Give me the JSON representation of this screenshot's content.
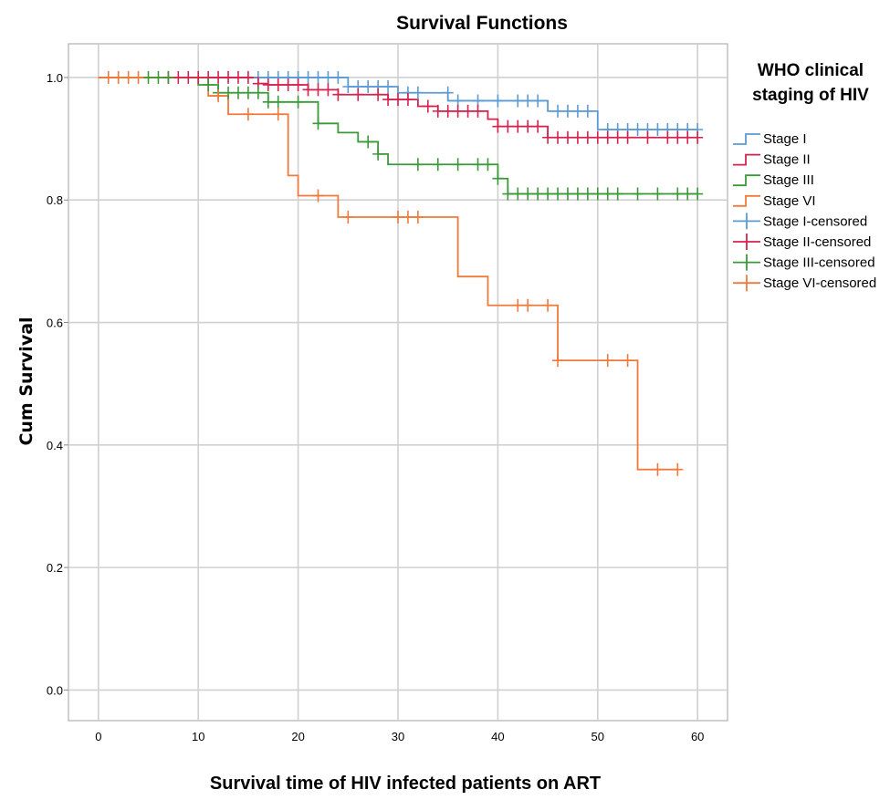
{
  "chart_data": {
    "type": "line",
    "title": "Survival Functions",
    "xlabel": "Survival time of HIV infected patients on ART",
    "ylabel": "Cum Survival",
    "xlim": [
      -3,
      63
    ],
    "ylim": [
      -0.05,
      1.055
    ],
    "x_ticks": [
      "0",
      "10",
      "20",
      "30",
      "40",
      "50",
      "60"
    ],
    "y_ticks": [
      "0.0",
      "0.2",
      "0.4",
      "0.6",
      "0.8",
      "1.0"
    ],
    "grid": true,
    "legend_title": [
      "WHO clinical",
      "staging of HIV"
    ],
    "legend_position": "right",
    "legend": [
      {
        "label": "Stage I",
        "kind": "step",
        "color": "#5b9bd5"
      },
      {
        "label": "Stage II",
        "kind": "step",
        "color": "#d6224e"
      },
      {
        "label": "Stage III",
        "kind": "step",
        "color": "#3a9a3a"
      },
      {
        "label": "Stage VI",
        "kind": "step",
        "color": "#f07a3c"
      },
      {
        "label": "Stage I-censored",
        "kind": "censor",
        "color": "#5b9bd5"
      },
      {
        "label": "Stage II-censored",
        "kind": "censor",
        "color": "#d6224e"
      },
      {
        "label": "Stage III-censored",
        "kind": "censor",
        "color": "#3a9a3a"
      },
      {
        "label": "Stage VI-censored",
        "kind": "censor",
        "color": "#f07a3c"
      }
    ],
    "series": [
      {
        "name": "Stage I",
        "color": "#5b9bd5",
        "steps": [
          [
            0,
            1.0
          ],
          [
            25,
            0.985
          ],
          [
            30,
            0.975
          ],
          [
            35,
            0.962
          ],
          [
            45,
            0.945
          ],
          [
            50,
            0.915
          ],
          [
            60,
            0.915
          ]
        ],
        "censored": [
          [
            16,
            1.0
          ],
          [
            17,
            1.0
          ],
          [
            18,
            1.0
          ],
          [
            19,
            1.0
          ],
          [
            20,
            1.0
          ],
          [
            21,
            1.0
          ],
          [
            22,
            1.0
          ],
          [
            23,
            1.0
          ],
          [
            24,
            1.0
          ],
          [
            25,
            0.985
          ],
          [
            26,
            0.985
          ],
          [
            27,
            0.985
          ],
          [
            28,
            0.985
          ],
          [
            29,
            0.985
          ],
          [
            31,
            0.975
          ],
          [
            32,
            0.975
          ],
          [
            35,
            0.975
          ],
          [
            36,
            0.962
          ],
          [
            38,
            0.962
          ],
          [
            40,
            0.962
          ],
          [
            42,
            0.962
          ],
          [
            43,
            0.962
          ],
          [
            44,
            0.962
          ],
          [
            46,
            0.945
          ],
          [
            47,
            0.945
          ],
          [
            48,
            0.945
          ],
          [
            49,
            0.945
          ],
          [
            51,
            0.915
          ],
          [
            52,
            0.915
          ],
          [
            53,
            0.915
          ],
          [
            54,
            0.915
          ],
          [
            55,
            0.915
          ],
          [
            56,
            0.915
          ],
          [
            57,
            0.915
          ],
          [
            58,
            0.915
          ],
          [
            59,
            0.915
          ],
          [
            60,
            0.915
          ]
        ]
      },
      {
        "name": "Stage II",
        "color": "#d6224e",
        "steps": [
          [
            0,
            1.0
          ],
          [
            16,
            0.99
          ],
          [
            17,
            0.988
          ],
          [
            21,
            0.98
          ],
          [
            24,
            0.972
          ],
          [
            29,
            0.964
          ],
          [
            32,
            0.953
          ],
          [
            34,
            0.945
          ],
          [
            39,
            0.932
          ],
          [
            40,
            0.92
          ],
          [
            45,
            0.902
          ],
          [
            60,
            0.902
          ]
        ],
        "censored": [
          [
            7,
            1.0
          ],
          [
            8,
            1.0
          ],
          [
            9,
            1.0
          ],
          [
            10,
            1.0
          ],
          [
            11,
            1.0
          ],
          [
            12,
            1.0
          ],
          [
            13,
            1.0
          ],
          [
            14,
            1.0
          ],
          [
            15,
            1.0
          ],
          [
            16,
            0.99
          ],
          [
            17,
            0.988
          ],
          [
            18,
            0.988
          ],
          [
            19,
            0.988
          ],
          [
            20,
            0.988
          ],
          [
            21,
            0.98
          ],
          [
            22,
            0.98
          ],
          [
            23,
            0.98
          ],
          [
            24,
            0.972
          ],
          [
            26,
            0.972
          ],
          [
            28,
            0.972
          ],
          [
            29,
            0.964
          ],
          [
            30,
            0.964
          ],
          [
            31,
            0.964
          ],
          [
            33,
            0.953
          ],
          [
            34,
            0.945
          ],
          [
            35,
            0.945
          ],
          [
            36,
            0.945
          ],
          [
            37,
            0.945
          ],
          [
            38,
            0.945
          ],
          [
            40,
            0.92
          ],
          [
            41,
            0.92
          ],
          [
            42,
            0.92
          ],
          [
            43,
            0.92
          ],
          [
            44,
            0.92
          ],
          [
            45,
            0.902
          ],
          [
            46,
            0.902
          ],
          [
            47,
            0.902
          ],
          [
            48,
            0.902
          ],
          [
            49,
            0.902
          ],
          [
            50,
            0.902
          ],
          [
            51,
            0.902
          ],
          [
            52,
            0.902
          ],
          [
            53,
            0.902
          ],
          [
            55,
            0.902
          ],
          [
            57,
            0.902
          ],
          [
            58,
            0.902
          ],
          [
            59,
            0.902
          ],
          [
            60,
            0.902
          ]
        ]
      },
      {
        "name": "Stage III",
        "color": "#3a9a3a",
        "steps": [
          [
            0,
            1.0
          ],
          [
            10,
            0.988
          ],
          [
            12,
            0.975
          ],
          [
            17,
            0.96
          ],
          [
            22,
            0.925
          ],
          [
            24,
            0.91
          ],
          [
            26,
            0.895
          ],
          [
            28,
            0.875
          ],
          [
            29,
            0.858
          ],
          [
            40,
            0.835
          ],
          [
            41,
            0.81
          ],
          [
            60,
            0.81
          ]
        ],
        "censored": [
          [
            5,
            1.0
          ],
          [
            6,
            1.0
          ],
          [
            7,
            1.0
          ],
          [
            11,
            0.988
          ],
          [
            12,
            0.975
          ],
          [
            13,
            0.975
          ],
          [
            14,
            0.975
          ],
          [
            15,
            0.975
          ],
          [
            16,
            0.975
          ],
          [
            17,
            0.96
          ],
          [
            18,
            0.96
          ],
          [
            20,
            0.96
          ],
          [
            22,
            0.925
          ],
          [
            27,
            0.895
          ],
          [
            28,
            0.875
          ],
          [
            32,
            0.858
          ],
          [
            34,
            0.858
          ],
          [
            36,
            0.858
          ],
          [
            38,
            0.858
          ],
          [
            39,
            0.858
          ],
          [
            40,
            0.835
          ],
          [
            41,
            0.81
          ],
          [
            42,
            0.81
          ],
          [
            43,
            0.81
          ],
          [
            44,
            0.81
          ],
          [
            45,
            0.81
          ],
          [
            46,
            0.81
          ],
          [
            47,
            0.81
          ],
          [
            48,
            0.81
          ],
          [
            49,
            0.81
          ],
          [
            50,
            0.81
          ],
          [
            51,
            0.81
          ],
          [
            52,
            0.81
          ],
          [
            54,
            0.81
          ],
          [
            56,
            0.81
          ],
          [
            58,
            0.81
          ],
          [
            59,
            0.81
          ],
          [
            60,
            0.81
          ]
        ]
      },
      {
        "name": "Stage VI",
        "color": "#f07a3c",
        "steps": [
          [
            0,
            1.0
          ],
          [
            11,
            0.97
          ],
          [
            13,
            0.94
          ],
          [
            19,
            0.84
          ],
          [
            20,
            0.807
          ],
          [
            24,
            0.772
          ],
          [
            36,
            0.675
          ],
          [
            39,
            0.628
          ],
          [
            46,
            0.538
          ],
          [
            54,
            0.36
          ],
          [
            58,
            0.36
          ]
        ],
        "censored": [
          [
            1,
            1.0
          ],
          [
            2,
            1.0
          ],
          [
            3,
            1.0
          ],
          [
            4,
            1.0
          ],
          [
            12,
            0.97
          ],
          [
            15,
            0.94
          ],
          [
            18,
            0.94
          ],
          [
            22,
            0.807
          ],
          [
            25,
            0.772
          ],
          [
            30,
            0.772
          ],
          [
            31,
            0.772
          ],
          [
            32,
            0.772
          ],
          [
            42,
            0.628
          ],
          [
            43,
            0.628
          ],
          [
            45,
            0.628
          ],
          [
            46,
            0.538
          ],
          [
            51,
            0.538
          ],
          [
            53,
            0.538
          ],
          [
            56,
            0.36
          ],
          [
            58,
            0.36
          ]
        ]
      }
    ]
  }
}
